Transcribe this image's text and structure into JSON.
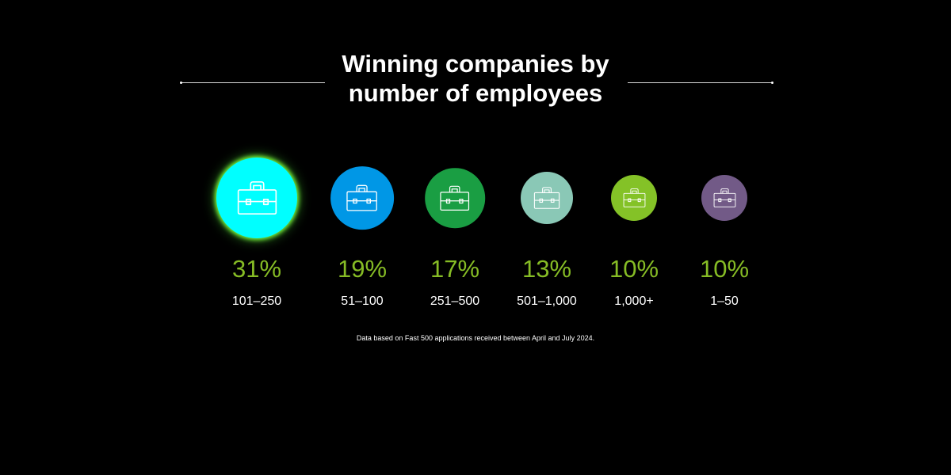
{
  "chart_data": {
    "type": "bubble",
    "title": "Winning companies by number of employees",
    "title_lines": [
      "Winning companies by",
      "number of employees"
    ],
    "unit": "%",
    "categories": [
      "101–250",
      "51–100",
      "251–500",
      "501–1,000",
      "1,000+",
      "1–50"
    ],
    "values": [
      31,
      19,
      17,
      13,
      10,
      10
    ],
    "value_labels": [
      "31%",
      "19%",
      "17%",
      "13%",
      "10%",
      "10%"
    ],
    "colors": [
      "#00ffff",
      "#0097e6",
      "#1a9e43",
      "#8ac8b6",
      "#84c227",
      "#725a87"
    ],
    "icon": "briefcase-icon",
    "footnote": "Data based on Fast 500 applications received between April and July 2024."
  },
  "colors": {
    "background": "#000000",
    "value_text": "#86bc25",
    "title_text": "#ffffff"
  }
}
